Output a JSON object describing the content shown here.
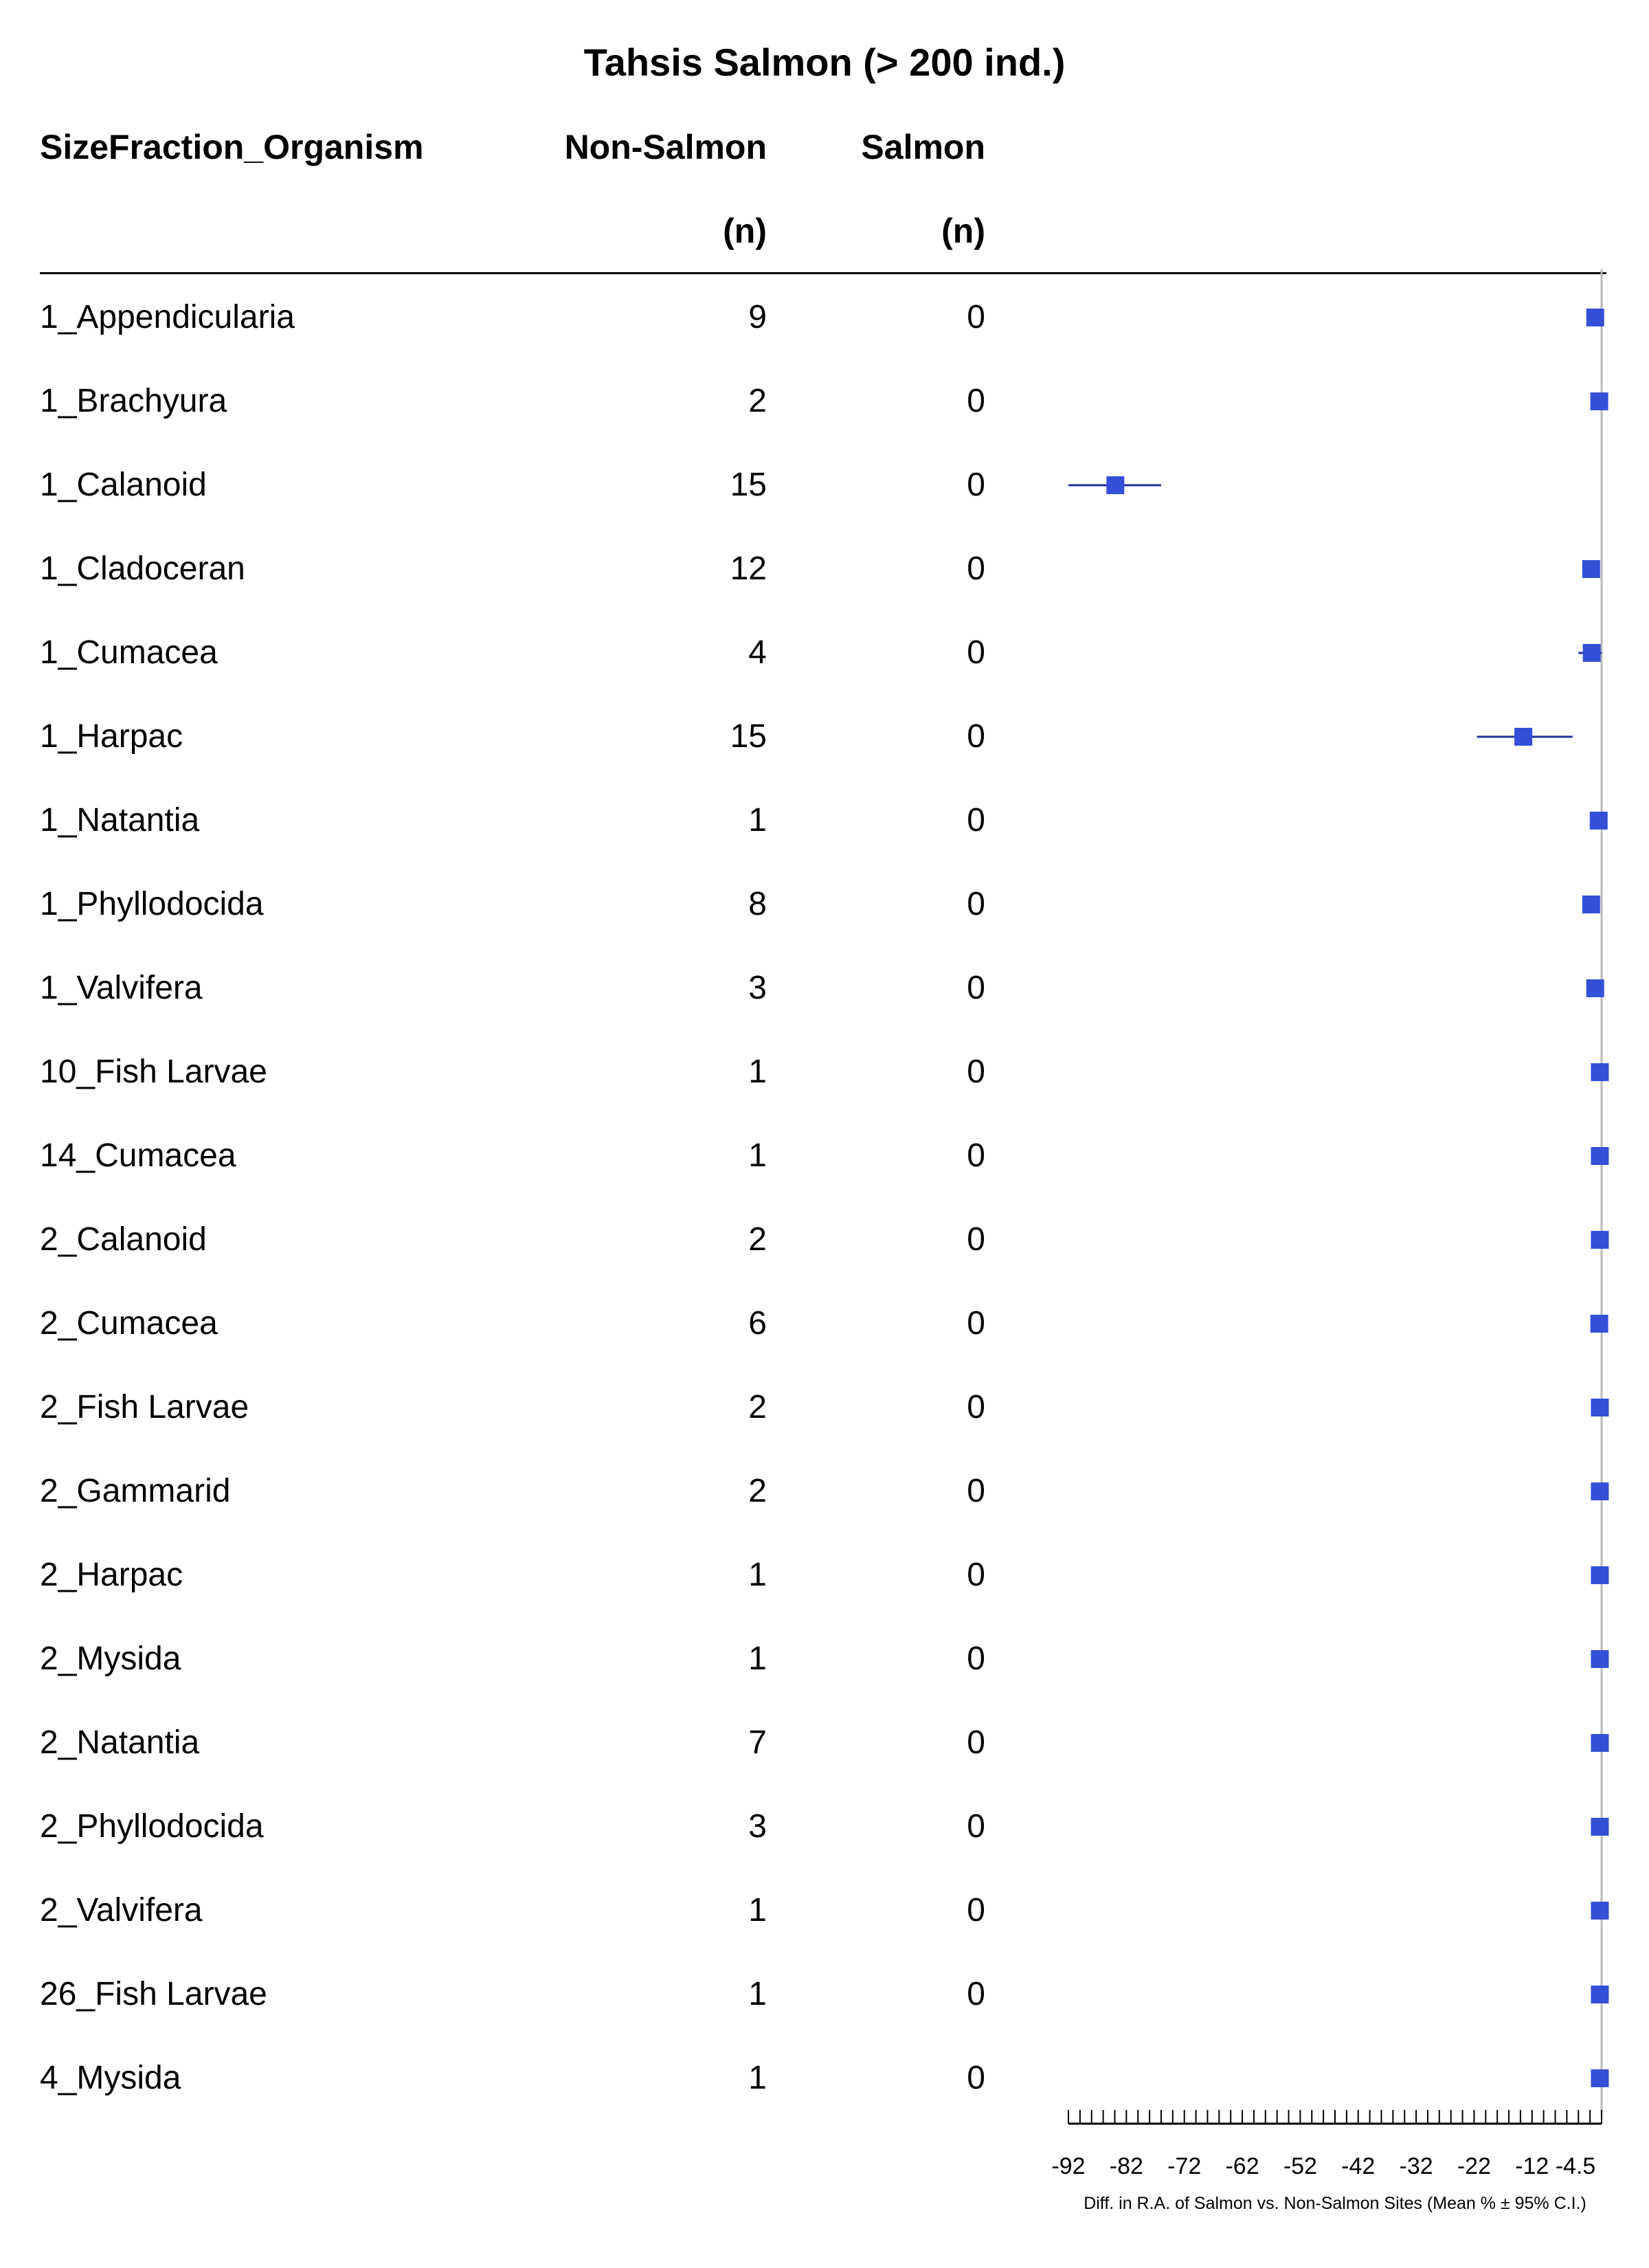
{
  "chart_data": {
    "type": "forest",
    "title": "Tahsis Salmon (> 200 ind.)",
    "columns": {
      "organism": "SizeFraction_Organism",
      "non_salmon": [
        "Non-Salmon",
        "(n)"
      ],
      "salmon": [
        "Salmon",
        "(n)"
      ]
    },
    "xlabel": "Diff. in R.A. of Salmon vs. Non-Salmon Sites (Mean % ± 95% C.I.)",
    "xlim": [
      -92,
      0
    ],
    "x_ticks": [
      -92,
      -82,
      -72,
      -62,
      -52,
      -42,
      -32,
      -22,
      -12,
      -4.5
    ],
    "x_ticks_minor_step": 2,
    "reference_line": 0,
    "marker_color": "#3350d6",
    "ci_color": "#1f2f9a",
    "rows": [
      {
        "organism": "1_Appendicularia",
        "non_salmon": "9",
        "salmon": "0",
        "mean": -1.1,
        "lo": -1.5,
        "hi": -0.7
      },
      {
        "organism": "1_Brachyura",
        "non_salmon": "2",
        "salmon": "0",
        "mean": -0.4,
        "lo": -0.6,
        "hi": -0.2
      },
      {
        "organism": "1_Calanoid",
        "non_salmon": "15",
        "salmon": "0",
        "mean": -83.9,
        "lo": -92.0,
        "hi": -76.0
      },
      {
        "organism": "1_Cladoceran",
        "non_salmon": "12",
        "salmon": "0",
        "mean": -1.8,
        "lo": -2.5,
        "hi": -1.2
      },
      {
        "organism": "1_Cumacea",
        "non_salmon": "4",
        "salmon": "0",
        "mean": -1.7,
        "lo": -4.0,
        "hi": 0.0
      },
      {
        "organism": "1_Harpac",
        "non_salmon": "15",
        "salmon": "0",
        "mean": -13.5,
        "lo": -21.5,
        "hi": -5.0
      },
      {
        "organism": "1_Natantia",
        "non_salmon": "1",
        "salmon": "0",
        "mean": -0.5,
        "lo": -0.5,
        "hi": -0.5
      },
      {
        "organism": "1_Phyllodocida",
        "non_salmon": "8",
        "salmon": "0",
        "mean": -1.8,
        "lo": -2.3,
        "hi": -1.3
      },
      {
        "organism": "1_Valvifera",
        "non_salmon": "3",
        "salmon": "0",
        "mean": -1.1,
        "lo": -1.4,
        "hi": -0.8
      },
      {
        "organism": "10_Fish Larvae",
        "non_salmon": "1",
        "salmon": "0",
        "mean": -0.3,
        "lo": -0.3,
        "hi": -0.3
      },
      {
        "organism": "14_Cumacea",
        "non_salmon": "1",
        "salmon": "0",
        "mean": -0.3,
        "lo": -0.3,
        "hi": -0.3
      },
      {
        "organism": "2_Calanoid",
        "non_salmon": "2",
        "salmon": "0",
        "mean": -0.3,
        "lo": -0.3,
        "hi": -0.3
      },
      {
        "organism": "2_Cumacea",
        "non_salmon": "6",
        "salmon": "0",
        "mean": -0.4,
        "lo": -0.5,
        "hi": -0.3
      },
      {
        "organism": "2_Fish Larvae",
        "non_salmon": "2",
        "salmon": "0",
        "mean": -0.3,
        "lo": -0.3,
        "hi": -0.3
      },
      {
        "organism": "2_Gammarid",
        "non_salmon": "2",
        "salmon": "0",
        "mean": -0.3,
        "lo": -0.3,
        "hi": -0.3
      },
      {
        "organism": "2_Harpac",
        "non_salmon": "1",
        "salmon": "0",
        "mean": -0.3,
        "lo": -0.3,
        "hi": -0.3
      },
      {
        "organism": "2_Mysida",
        "non_salmon": "1",
        "salmon": "0",
        "mean": -0.3,
        "lo": -0.3,
        "hi": -0.3
      },
      {
        "organism": "2_Natantia",
        "non_salmon": "7",
        "salmon": "0",
        "mean": -0.3,
        "lo": -0.4,
        "hi": -0.2
      },
      {
        "organism": "2_Phyllodocida",
        "non_salmon": "3",
        "salmon": "0",
        "mean": -0.3,
        "lo": -0.3,
        "hi": -0.3
      },
      {
        "organism": "2_Valvifera",
        "non_salmon": "1",
        "salmon": "0",
        "mean": -0.3,
        "lo": -0.3,
        "hi": -0.3
      },
      {
        "organism": "26_Fish Larvae",
        "non_salmon": "1",
        "salmon": "0",
        "mean": -0.3,
        "lo": -0.3,
        "hi": -0.3
      },
      {
        "organism": "4_Mysida",
        "non_salmon": "1",
        "salmon": "0",
        "mean": -0.3,
        "lo": -0.3,
        "hi": -0.3
      }
    ]
  }
}
